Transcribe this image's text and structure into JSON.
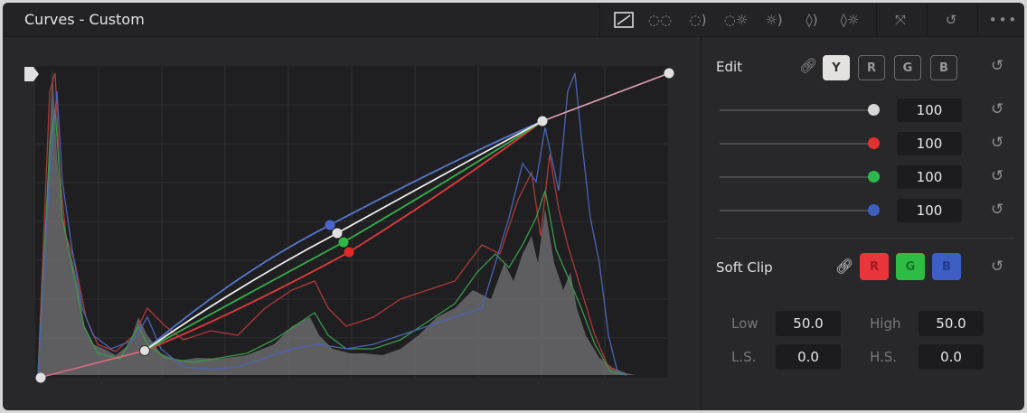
{
  "header": {
    "title": "Curves - Custom",
    "tools": [
      {
        "icon": "custom-curve-icon",
        "active": true
      },
      {
        "icon": "hue-vs-hue-icon"
      },
      {
        "icon": "hue-vs-sat-icon"
      },
      {
        "icon": "hue-vs-lum-icon"
      },
      {
        "icon": "lum-vs-sat-icon"
      },
      {
        "icon": "sat-vs-sat-icon"
      },
      {
        "icon": "sat-vs-lum-icon"
      }
    ],
    "expand_icon": "expand-icon",
    "reset_icon": "reset-all-icon",
    "more_icon": "more-icon"
  },
  "edit": {
    "label": "Edit",
    "link_icon": "link-icon",
    "channels": [
      "Y",
      "R",
      "G",
      "B"
    ],
    "selected": "Y",
    "sliders": [
      {
        "color": "#d8d8d8",
        "value": "100"
      },
      {
        "color": "#e53030",
        "value": "100"
      },
      {
        "color": "#2fb84a",
        "value": "100"
      },
      {
        "color": "#3d5fc4",
        "value": "100"
      }
    ]
  },
  "soft_clip": {
    "label": "Soft Clip",
    "channels": [
      {
        "label": "R",
        "color": "#e8363a"
      },
      {
        "label": "G",
        "color": "#2ebd44"
      },
      {
        "label": "B",
        "color": "#3d5ec4"
      }
    ],
    "low_label": "Low",
    "low": "50.0",
    "high_label": "High",
    "high": "50.0",
    "ls_label": "L.S.",
    "ls": "0.0",
    "hs_label": "H.S.",
    "hs": "0.0"
  },
  "colors": {
    "luma": "#e8e8e8",
    "red": "#e04040",
    "green": "#3cb050",
    "blue": "#5577cc"
  }
}
